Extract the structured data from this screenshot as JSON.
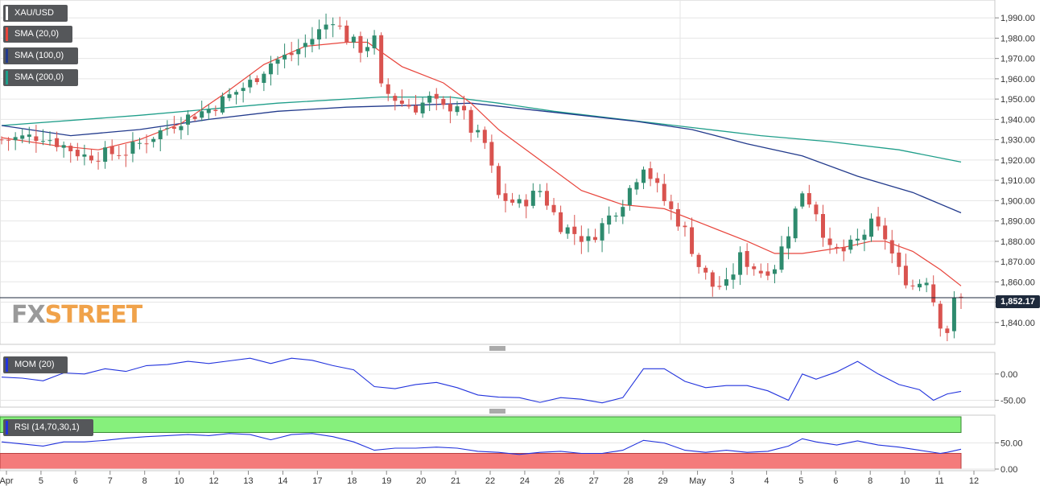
{
  "colors": {
    "up": "#2e8b6e",
    "down": "#d9534f",
    "sma20": "#e8453c",
    "sma100": "#223a8c",
    "sma200": "#1f9e8a",
    "mom": "#2233dd",
    "rsi": "#2233dd",
    "overbought": "#86f07c",
    "oversold": "#f47b7b"
  },
  "watermark": {
    "fx": "FX",
    "street": "STREET"
  },
  "price_tag": "1,852.17",
  "chart_data": [
    {
      "type": "candlestick",
      "legend": [
        {
          "label": "XAU/USD",
          "color": "#ffffff"
        },
        {
          "label": "SMA (20,0)",
          "color": "#e8453c"
        },
        {
          "label": "SMA (100,0)",
          "color": "#223a8c"
        },
        {
          "label": "SMA (200,0)",
          "color": "#1f9e8a"
        }
      ],
      "ylim": [
        1830,
        1998
      ],
      "yticks": [
        1840,
        1850,
        1860,
        1870,
        1880,
        1890,
        1900,
        1910,
        1920,
        1930,
        1940,
        1950,
        1960,
        1970,
        1980,
        1990
      ],
      "ytick_labels": [
        "1,840.00",
        "1,850.00",
        "1,860.00",
        "1,870.00",
        "1,880.00",
        "1,890.00",
        "1,900.00",
        "1,910.00",
        "1,920.00",
        "1,930.00",
        "1,940.00",
        "1,950.00",
        "1,960.00",
        "1,970.00",
        "1,980.00",
        "1,990.00"
      ],
      "last_price": 1852.17,
      "close_path": [
        [
          0,
          1930
        ],
        [
          6,
          1932
        ],
        [
          12,
          1922
        ],
        [
          18,
          1924
        ],
        [
          22,
          1932
        ],
        [
          26,
          1940
        ],
        [
          30,
          1945
        ],
        [
          36,
          1958
        ],
        [
          39,
          1968
        ],
        [
          42,
          1972
        ],
        [
          45,
          1980
        ],
        [
          48,
          1990
        ],
        [
          50,
          1980
        ],
        [
          52,
          1975
        ],
        [
          54,
          1979
        ],
        [
          55,
          1955
        ],
        [
          58,
          1948
        ],
        [
          60,
          1946
        ],
        [
          62,
          1950
        ],
        [
          64,
          1945
        ],
        [
          66,
          1948
        ],
        [
          68,
          1935
        ],
        [
          70,
          1928
        ],
        [
          72,
          1902
        ],
        [
          75,
          1898
        ],
        [
          78,
          1905
        ],
        [
          81,
          1888
        ],
        [
          85,
          1880
        ],
        [
          88,
          1892
        ],
        [
          90,
          1900
        ],
        [
          93,
          1918
        ],
        [
          96,
          1900
        ],
        [
          99,
          1885
        ],
        [
          101,
          1868
        ],
        [
          103,
          1858
        ],
        [
          105,
          1858
        ],
        [
          107,
          1872
        ],
        [
          110,
          1865
        ],
        [
          112,
          1868
        ],
        [
          114,
          1885
        ],
        [
          116,
          1905
        ],
        [
          118,
          1895
        ],
        [
          120,
          1875
        ],
        [
          122,
          1875
        ],
        [
          124,
          1880
        ],
        [
          126,
          1888
        ],
        [
          128,
          1882
        ],
        [
          130,
          1865
        ],
        [
          132,
          1858
        ],
        [
          134,
          1862
        ],
        [
          136,
          1840
        ],
        [
          137,
          1836
        ],
        [
          138,
          1850
        ],
        [
          139,
          1852.17
        ]
      ],
      "sma20": [
        [
          0,
          1931
        ],
        [
          8,
          1927
        ],
        [
          14,
          1925
        ],
        [
          20,
          1930
        ],
        [
          26,
          1938
        ],
        [
          32,
          1952
        ],
        [
          38,
          1967
        ],
        [
          44,
          1976
        ],
        [
          50,
          1978
        ],
        [
          53,
          1978
        ],
        [
          58,
          1966
        ],
        [
          64,
          1958
        ],
        [
          68,
          1948
        ],
        [
          72,
          1935
        ],
        [
          78,
          1920
        ],
        [
          84,
          1905
        ],
        [
          90,
          1898
        ],
        [
          96,
          1896
        ],
        [
          102,
          1888
        ],
        [
          108,
          1880
        ],
        [
          112,
          1874
        ],
        [
          116,
          1874
        ],
        [
          122,
          1877
        ],
        [
          126,
          1880
        ],
        [
          128,
          1880
        ],
        [
          132,
          1875
        ],
        [
          136,
          1866
        ],
        [
          139,
          1858
        ]
      ],
      "sma100": [
        [
          0,
          1937
        ],
        [
          10,
          1932
        ],
        [
          20,
          1935
        ],
        [
          30,
          1940
        ],
        [
          40,
          1944
        ],
        [
          50,
          1946
        ],
        [
          60,
          1947
        ],
        [
          68,
          1948
        ],
        [
          76,
          1945
        ],
        [
          84,
          1942
        ],
        [
          92,
          1939
        ],
        [
          100,
          1935
        ],
        [
          108,
          1928
        ],
        [
          116,
          1922
        ],
        [
          124,
          1912
        ],
        [
          132,
          1904
        ],
        [
          139,
          1894
        ]
      ],
      "sma200": [
        [
          0,
          1937
        ],
        [
          20,
          1942
        ],
        [
          40,
          1948
        ],
        [
          55,
          1951
        ],
        [
          65,
          1951
        ],
        [
          72,
          1948
        ],
        [
          80,
          1944
        ],
        [
          90,
          1940
        ],
        [
          100,
          1936
        ],
        [
          110,
          1932
        ],
        [
          120,
          1929
        ],
        [
          130,
          1925
        ],
        [
          139,
          1919
        ]
      ]
    },
    {
      "type": "line",
      "legend": [
        {
          "label": "MOM (20)",
          "color": "#2233dd"
        }
      ],
      "ylim": [
        -60,
        38
      ],
      "yticks": [
        0,
        -50
      ],
      "ytick_labels": [
        "0.00",
        "-50.00"
      ],
      "series": [
        [
          0,
          -6
        ],
        [
          3,
          -8
        ],
        [
          6,
          -13
        ],
        [
          9,
          2
        ],
        [
          12,
          0
        ],
        [
          15,
          10
        ],
        [
          18,
          5
        ],
        [
          21,
          16
        ],
        [
          24,
          18
        ],
        [
          27,
          24
        ],
        [
          30,
          20
        ],
        [
          33,
          25
        ],
        [
          36,
          30
        ],
        [
          39,
          20
        ],
        [
          42,
          30
        ],
        [
          45,
          26
        ],
        [
          48,
          16
        ],
        [
          51,
          8
        ],
        [
          54,
          -24
        ],
        [
          57,
          -28
        ],
        [
          60,
          -20
        ],
        [
          63,
          -16
        ],
        [
          66,
          -26
        ],
        [
          69,
          -40
        ],
        [
          72,
          -44
        ],
        [
          75,
          -45
        ],
        [
          78,
          -54
        ],
        [
          81,
          -45
        ],
        [
          84,
          -48
        ],
        [
          87,
          -55
        ],
        [
          90,
          -45
        ],
        [
          93,
          10
        ],
        [
          96,
          10
        ],
        [
          99,
          -14
        ],
        [
          102,
          -26
        ],
        [
          105,
          -22
        ],
        [
          108,
          -22
        ],
        [
          111,
          -32
        ],
        [
          114,
          -50
        ],
        [
          116,
          0
        ],
        [
          118,
          -10
        ],
        [
          121,
          4
        ],
        [
          124,
          24
        ],
        [
          127,
          0
        ],
        [
          130,
          -20
        ],
        [
          133,
          -30
        ],
        [
          135,
          -50
        ],
        [
          137,
          -38
        ],
        [
          139,
          -33
        ]
      ]
    },
    {
      "type": "line",
      "legend": [
        {
          "label": "RSI (14,70,30,1)",
          "color": "#2233dd"
        }
      ],
      "ylim": [
        0,
        100
      ],
      "yticks": [
        50,
        0
      ],
      "ytick_labels": [
        "50.00",
        "0.00"
      ],
      "overbought": 70,
      "oversold": 30,
      "series": [
        [
          0,
          52
        ],
        [
          3,
          48
        ],
        [
          6,
          44
        ],
        [
          9,
          52
        ],
        [
          12,
          52
        ],
        [
          15,
          55
        ],
        [
          18,
          59
        ],
        [
          21,
          62
        ],
        [
          24,
          64
        ],
        [
          27,
          66
        ],
        [
          30,
          64
        ],
        [
          33,
          68
        ],
        [
          36,
          66
        ],
        [
          39,
          56
        ],
        [
          42,
          66
        ],
        [
          45,
          68
        ],
        [
          48,
          62
        ],
        [
          51,
          52
        ],
        [
          54,
          36
        ],
        [
          57,
          40
        ],
        [
          60,
          40
        ],
        [
          63,
          42
        ],
        [
          66,
          40
        ],
        [
          69,
          34
        ],
        [
          72,
          32
        ],
        [
          75,
          28
        ],
        [
          78,
          32
        ],
        [
          81,
          34
        ],
        [
          84,
          30
        ],
        [
          87,
          30
        ],
        [
          90,
          36
        ],
        [
          93,
          55
        ],
        [
          96,
          50
        ],
        [
          99,
          36
        ],
        [
          102,
          32
        ],
        [
          105,
          36
        ],
        [
          108,
          32
        ],
        [
          111,
          34
        ],
        [
          114,
          44
        ],
        [
          116,
          58
        ],
        [
          118,
          52
        ],
        [
          121,
          46
        ],
        [
          124,
          54
        ],
        [
          127,
          46
        ],
        [
          130,
          42
        ],
        [
          133,
          36
        ],
        [
          136,
          30
        ],
        [
          137,
          32
        ],
        [
          139,
          38
        ]
      ]
    }
  ],
  "x_axis": {
    "n_bars": 140,
    "ticks": [
      {
        "bar": 0,
        "label": "Apr"
      },
      {
        "bar": 5,
        "label": "5"
      },
      {
        "bar": 12,
        "label": "6"
      },
      {
        "bar": 19,
        "label": "7"
      },
      {
        "bar": 26,
        "label": "8"
      },
      {
        "bar": 33,
        "label": "10"
      },
      {
        "bar": 40,
        "label": "12"
      },
      {
        "bar": 47,
        "label": "13"
      },
      {
        "bar": 54,
        "label": "14"
      },
      {
        "bar": 61,
        "label": "17"
      },
      {
        "bar": 68,
        "label": "18"
      },
      {
        "bar": 75,
        "label": "19"
      },
      {
        "bar": 82,
        "label": "20"
      },
      {
        "bar": 89,
        "label": "21"
      },
      {
        "bar": 96,
        "label": "22"
      },
      {
        "bar": 103,
        "label": "24"
      },
      {
        "bar": 110,
        "label": "26"
      },
      {
        "bar": 117,
        "label": "27"
      },
      {
        "bar": 124,
        "label": "28"
      },
      {
        "bar": 131,
        "label": "29"
      },
      {
        "bar": 138,
        "label": "May"
      }
    ]
  },
  "x_axis_labels_full": [
    "Apr",
    "5",
    "6",
    "7",
    "8",
    "10",
    "12",
    "13",
    "14",
    "17",
    "18",
    "19",
    "20",
    "21",
    "22",
    "24",
    "26",
    "27",
    "28",
    "29",
    "May",
    "3",
    "4",
    "5",
    "6",
    "8",
    "10",
    "11",
    "12"
  ]
}
